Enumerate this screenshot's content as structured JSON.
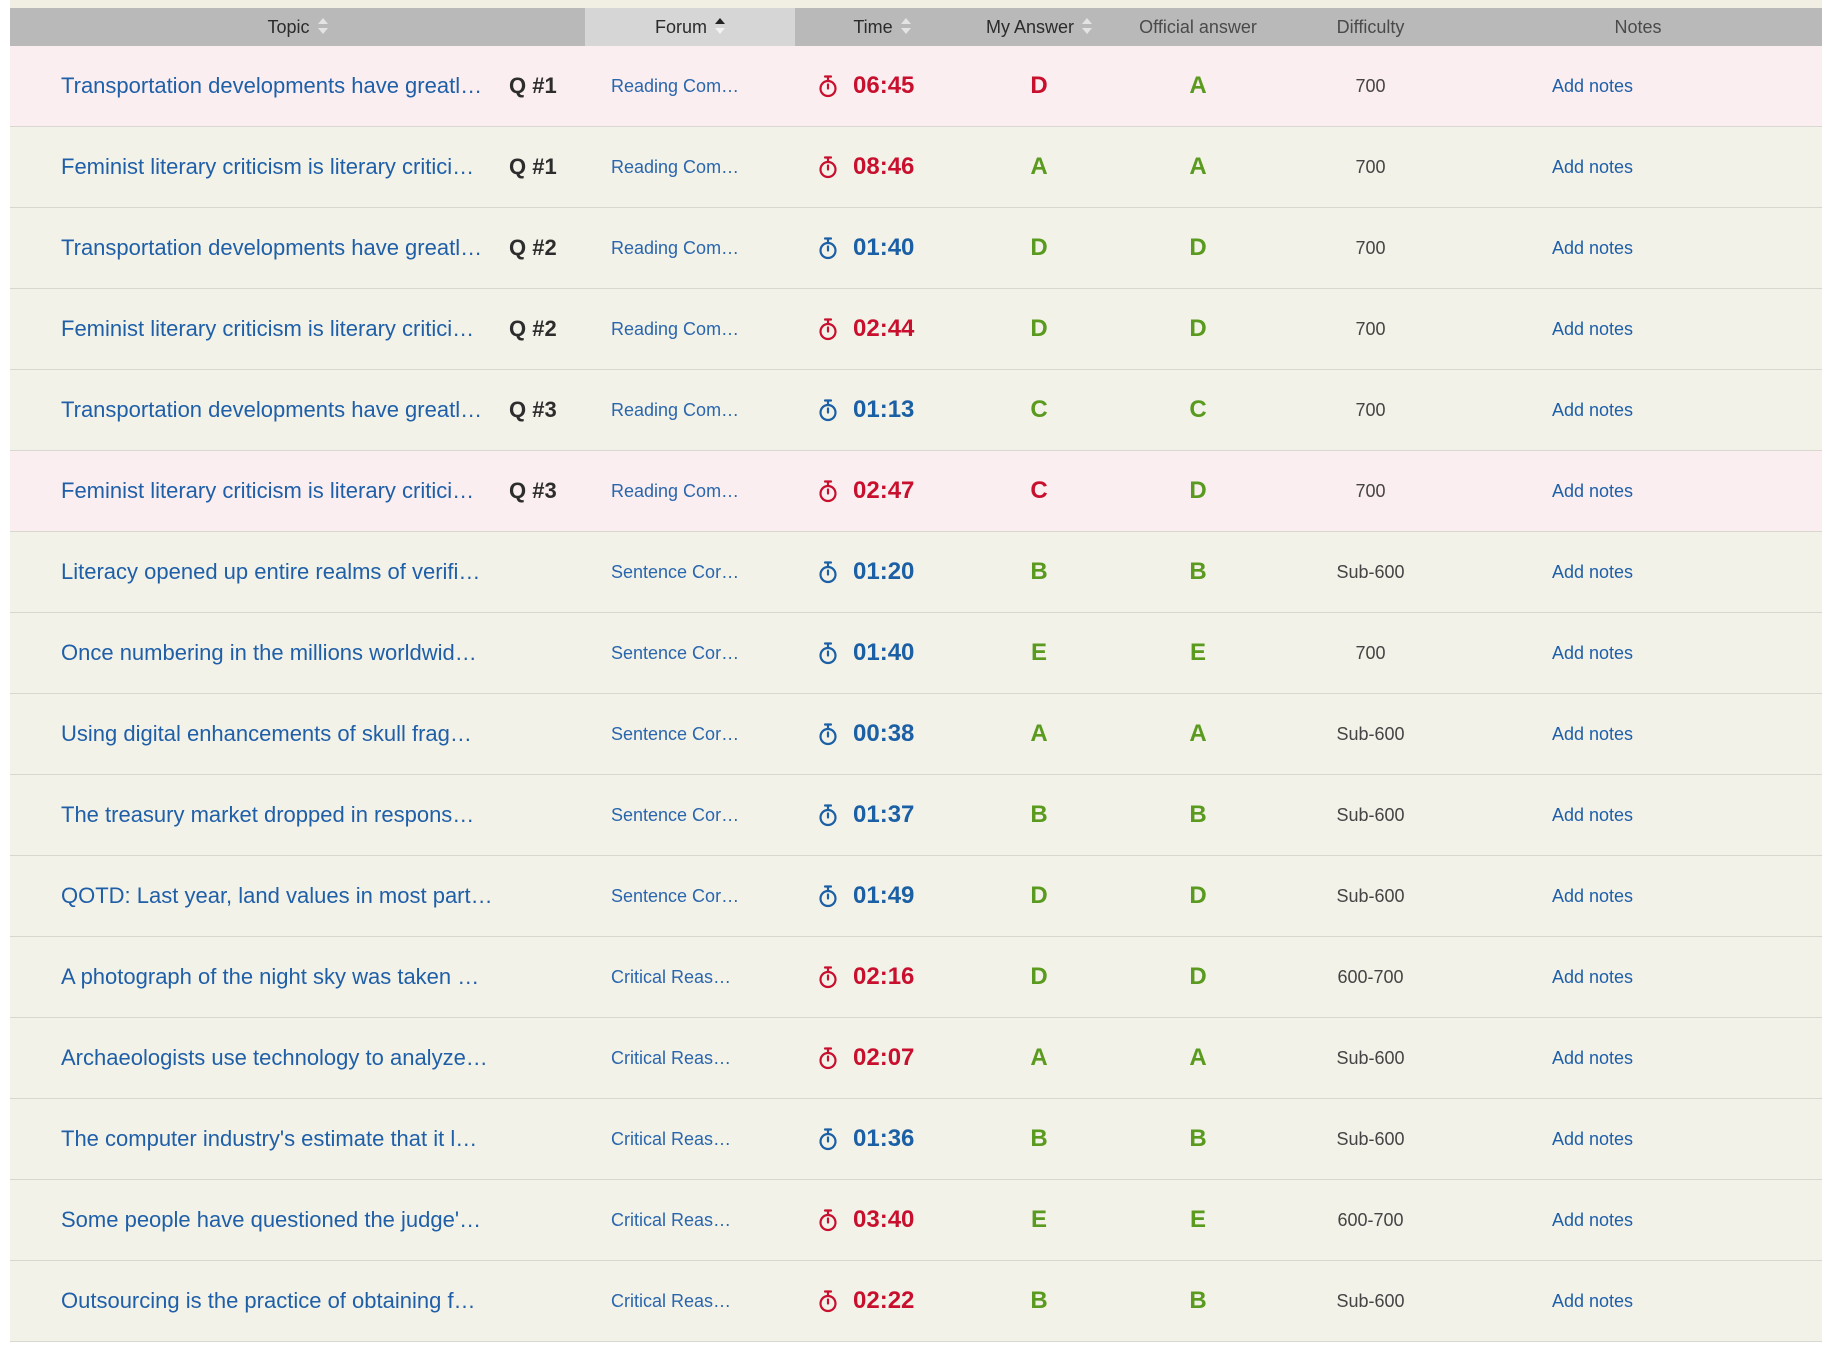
{
  "header": {
    "topic": "Topic",
    "forum": "Forum",
    "time": "Time",
    "my_answer": "My Answer",
    "official_answer": "Official answer",
    "difficulty": "Difficulty",
    "notes": "Notes"
  },
  "colors": {
    "slow": "#c8102e",
    "on_pace": "#1b5fa5",
    "correct": "#5a9a1e",
    "incorrect": "#c8102e",
    "wrong_row_bg": "#faeef0"
  },
  "rows": [
    {
      "topic": "Transportation developments have greatl…",
      "q": "Q #1",
      "forum": "Reading Com…",
      "time": "06:45",
      "slow": true,
      "mine": "D",
      "official": "A",
      "difficulty": "700",
      "notes": "Add notes"
    },
    {
      "topic": "Feminist literary criticism is literary critici…",
      "q": "Q #1",
      "forum": "Reading Com…",
      "time": "08:46",
      "slow": true,
      "mine": "A",
      "official": "A",
      "difficulty": "700",
      "notes": "Add notes"
    },
    {
      "topic": "Transportation developments have greatl…",
      "q": "Q #2",
      "forum": "Reading Com…",
      "time": "01:40",
      "slow": false,
      "mine": "D",
      "official": "D",
      "difficulty": "700",
      "notes": "Add notes"
    },
    {
      "topic": "Feminist literary criticism is literary critici…",
      "q": "Q #2",
      "forum": "Reading Com…",
      "time": "02:44",
      "slow": true,
      "mine": "D",
      "official": "D",
      "difficulty": "700",
      "notes": "Add notes"
    },
    {
      "topic": "Transportation developments have greatl…",
      "q": "Q #3",
      "forum": "Reading Com…",
      "time": "01:13",
      "slow": false,
      "mine": "C",
      "official": "C",
      "difficulty": "700",
      "notes": "Add notes"
    },
    {
      "topic": "Feminist literary criticism is literary critici…",
      "q": "Q #3",
      "forum": "Reading Com…",
      "time": "02:47",
      "slow": true,
      "mine": "C",
      "official": "D",
      "difficulty": "700",
      "notes": "Add notes"
    },
    {
      "topic": "Literacy opened up entire realms of verifi…",
      "q": "",
      "forum": "Sentence Cor…",
      "time": "01:20",
      "slow": false,
      "mine": "B",
      "official": "B",
      "difficulty": "Sub-600",
      "notes": "Add notes"
    },
    {
      "topic": "Once numbering in the millions worldwid…",
      "q": "",
      "forum": "Sentence Cor…",
      "time": "01:40",
      "slow": false,
      "mine": "E",
      "official": "E",
      "difficulty": "700",
      "notes": "Add notes"
    },
    {
      "topic": "Using digital enhancements of skull frag…",
      "q": "",
      "forum": "Sentence Cor…",
      "time": "00:38",
      "slow": false,
      "mine": "A",
      "official": "A",
      "difficulty": "Sub-600",
      "notes": "Add notes"
    },
    {
      "topic": "The treasury market dropped in respons…",
      "q": "",
      "forum": "Sentence Cor…",
      "time": "01:37",
      "slow": false,
      "mine": "B",
      "official": "B",
      "difficulty": "Sub-600",
      "notes": "Add notes"
    },
    {
      "topic": "QOTD: Last year, land values in most part…",
      "q": "",
      "forum": "Sentence Cor…",
      "time": "01:49",
      "slow": false,
      "mine": "D",
      "official": "D",
      "difficulty": "Sub-600",
      "notes": "Add notes"
    },
    {
      "topic": "A photograph of the night sky was taken …",
      "q": "",
      "forum": "Critical Reas…",
      "time": "02:16",
      "slow": true,
      "mine": "D",
      "official": "D",
      "difficulty": "600-700",
      "notes": "Add notes"
    },
    {
      "topic": "Archaeologists use technology to analyze…",
      "q": "",
      "forum": "Critical Reas…",
      "time": "02:07",
      "slow": true,
      "mine": "A",
      "official": "A",
      "difficulty": "Sub-600",
      "notes": "Add notes"
    },
    {
      "topic": "The computer industry's estimate that it l…",
      "q": "",
      "forum": "Critical Reas…",
      "time": "01:36",
      "slow": false,
      "mine": "B",
      "official": "B",
      "difficulty": "Sub-600",
      "notes": "Add notes"
    },
    {
      "topic": "Some people have questioned the judge'…",
      "q": "",
      "forum": "Critical Reas…",
      "time": "03:40",
      "slow": true,
      "mine": "E",
      "official": "E",
      "difficulty": "600-700",
      "notes": "Add notes"
    },
    {
      "topic": "Outsourcing is the practice of obtaining f…",
      "q": "",
      "forum": "Critical Reas…",
      "time": "02:22",
      "slow": true,
      "mine": "B",
      "official": "B",
      "difficulty": "Sub-600",
      "notes": "Add notes"
    }
  ]
}
